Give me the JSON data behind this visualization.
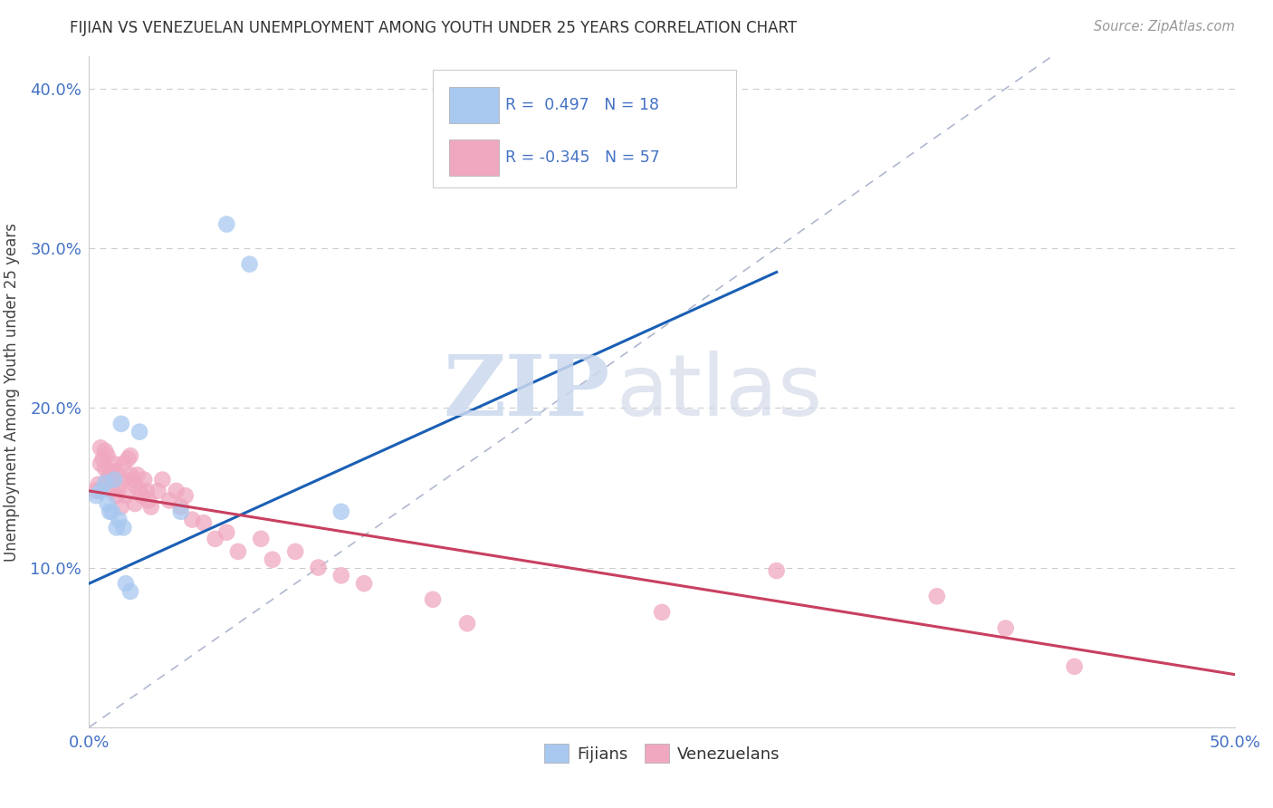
{
  "title": "FIJIAN VS VENEZUELAN UNEMPLOYMENT AMONG YOUTH UNDER 25 YEARS CORRELATION CHART",
  "source": "Source: ZipAtlas.com",
  "ylabel": "Unemployment Among Youth under 25 years",
  "xlim": [
    0.0,
    0.5
  ],
  "ylim": [
    0.0,
    0.42
  ],
  "xticks": [
    0.0,
    0.05,
    0.1,
    0.15,
    0.2,
    0.25,
    0.3,
    0.35,
    0.4,
    0.45,
    0.5
  ],
  "yticks": [
    0.0,
    0.1,
    0.2,
    0.3,
    0.4
  ],
  "fijian_R": 0.497,
  "fijian_N": 18,
  "venezuelan_R": -0.345,
  "venezuelan_N": 57,
  "fijian_color": "#a8c8f0",
  "venezuelan_color": "#f0a8c0",
  "fijian_line_color": "#1a5fb4",
  "venezuelan_line_color": "#c84060",
  "diagonal_color": "#b0b8d0",
  "watermark_zip": "ZIP",
  "watermark_atlas": "atlas",
  "background_color": "#ffffff",
  "grid_color": "#cccccc",
  "fijian_x": [
    0.003,
    0.005,
    0.007,
    0.008,
    0.009,
    0.01,
    0.011,
    0.012,
    0.013,
    0.014,
    0.015,
    0.016,
    0.018,
    0.022,
    0.04,
    0.06,
    0.07,
    0.11
  ],
  "fijian_y": [
    0.145,
    0.148,
    0.153,
    0.14,
    0.135,
    0.135,
    0.155,
    0.125,
    0.13,
    0.19,
    0.125,
    0.09,
    0.085,
    0.185,
    0.135,
    0.315,
    0.29,
    0.135
  ],
  "venezuelan_x": [
    0.003,
    0.004,
    0.005,
    0.005,
    0.006,
    0.007,
    0.007,
    0.008,
    0.008,
    0.009,
    0.01,
    0.01,
    0.011,
    0.012,
    0.012,
    0.013,
    0.014,
    0.015,
    0.015,
    0.016,
    0.017,
    0.018,
    0.018,
    0.019,
    0.02,
    0.02,
    0.021,
    0.022,
    0.023,
    0.024,
    0.025,
    0.026,
    0.027,
    0.03,
    0.032,
    0.035,
    0.038,
    0.04,
    0.042,
    0.045,
    0.05,
    0.055,
    0.06,
    0.065,
    0.075,
    0.08,
    0.09,
    0.1,
    0.11,
    0.12,
    0.15,
    0.165,
    0.25,
    0.3,
    0.37,
    0.4,
    0.43
  ],
  "venezuelan_y": [
    0.148,
    0.152,
    0.165,
    0.175,
    0.168,
    0.162,
    0.173,
    0.155,
    0.17,
    0.158,
    0.16,
    0.148,
    0.165,
    0.16,
    0.145,
    0.15,
    0.138,
    0.155,
    0.165,
    0.145,
    0.168,
    0.158,
    0.17,
    0.155,
    0.152,
    0.14,
    0.158,
    0.148,
    0.145,
    0.155,
    0.148,
    0.142,
    0.138,
    0.148,
    0.155,
    0.142,
    0.148,
    0.138,
    0.145,
    0.13,
    0.128,
    0.118,
    0.122,
    0.11,
    0.118,
    0.105,
    0.11,
    0.1,
    0.095,
    0.09,
    0.08,
    0.065,
    0.072,
    0.098,
    0.082,
    0.062,
    0.038
  ],
  "fijian_line_x0": 0.0,
  "fijian_line_y0": 0.09,
  "fijian_line_x1": 0.3,
  "fijian_line_y1": 0.285,
  "venezuelan_line_x0": 0.0,
  "venezuelan_line_y0": 0.148,
  "venezuelan_line_x1": 0.5,
  "venezuelan_line_y1": 0.033
}
